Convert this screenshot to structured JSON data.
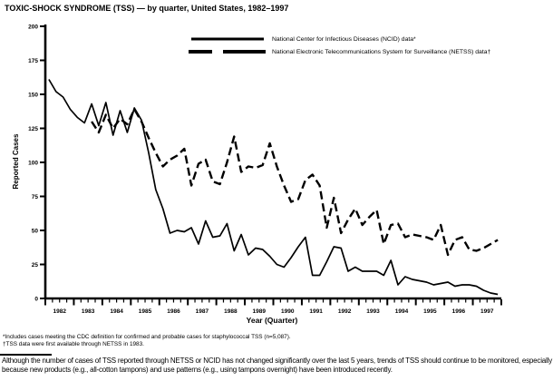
{
  "title": "TOXIC-SHOCK SYNDROME (TSS) — by quarter, United States, 1982–1997",
  "footnotes": {
    "line1": "*Includes cases meeting the CDC definition for confirmed and probable cases for staphylococcal TSS (n=5,087).",
    "line2": "†TSS data were first available through NETSS in 1983."
  },
  "note": "Although the number of cases of TSS reported through NETSS or NCID has not changed significantly over the last 5 years, trends of TSS should continue to be monitored, especially because new products (e.g., all-cotton tampons) and use patterns (e.g., using tampons overnight) have been introduced recently.",
  "chart_data": {
    "type": "line",
    "title": "TOXIC-SHOCK SYNDROME (TSS) — by quarter, United States, 1982–1997",
    "xlabel": "Year (Quarter)",
    "ylabel": "Reported Cases",
    "ylim": [
      0,
      200
    ],
    "yticks": [
      0,
      25,
      50,
      75,
      100,
      125,
      150,
      175,
      200
    ],
    "x_years": [
      "1982",
      "1983",
      "1984",
      "1985",
      "1986",
      "1987",
      "1988",
      "1989",
      "1990",
      "1991",
      "1992",
      "1993",
      "1994",
      "1995",
      "1996",
      "1997"
    ],
    "quarters_per_year": 4,
    "grid": false,
    "legend_position": "top-center",
    "line_color": "#000000",
    "legend": [
      {
        "label": "National Center for Infectious Diseases (NCID) data*",
        "style": "solid"
      },
      {
        "label": "National Electronic Telecommunications System for Surveillance (NETSS) data†",
        "style": "long-dash"
      }
    ],
    "series": [
      {
        "name": "National Center for Infectious Diseases (NCID) data*",
        "short_name": "NCID",
        "style": "solid",
        "values": [
          161,
          152,
          148,
          139,
          133,
          129,
          143,
          127,
          144,
          120,
          138,
          122,
          140,
          131,
          107,
          80,
          66,
          48,
          50,
          49,
          52,
          40,
          57,
          45,
          46,
          55,
          35,
          47,
          32,
          37,
          36,
          31,
          25,
          23,
          30,
          38,
          45,
          17,
          17,
          27,
          38,
          37,
          20,
          23,
          20,
          20,
          20,
          17,
          28,
          10,
          16,
          14,
          13,
          12,
          10,
          11,
          12,
          9,
          10,
          10,
          9,
          6,
          4,
          3
        ]
      },
      {
        "name": "National Electronic Telecommunications System for Surveillance (NETSS) data†",
        "short_name": "NETSS",
        "style": "long-dash",
        "values": [
          null,
          null,
          null,
          null,
          null,
          null,
          130,
          122,
          135,
          125,
          132,
          128,
          139,
          130,
          118,
          107,
          97,
          102,
          105,
          110,
          83,
          99,
          102,
          86,
          84,
          100,
          119,
          93,
          97,
          96,
          98,
          114,
          97,
          83,
          71,
          73,
          87,
          91,
          83,
          52,
          74,
          48,
          58,
          66,
          54,
          60,
          65,
          40,
          54,
          55,
          45,
          47,
          46,
          45,
          43,
          54,
          32,
          43,
          45,
          36,
          35,
          37,
          40,
          43
        ]
      }
    ]
  }
}
